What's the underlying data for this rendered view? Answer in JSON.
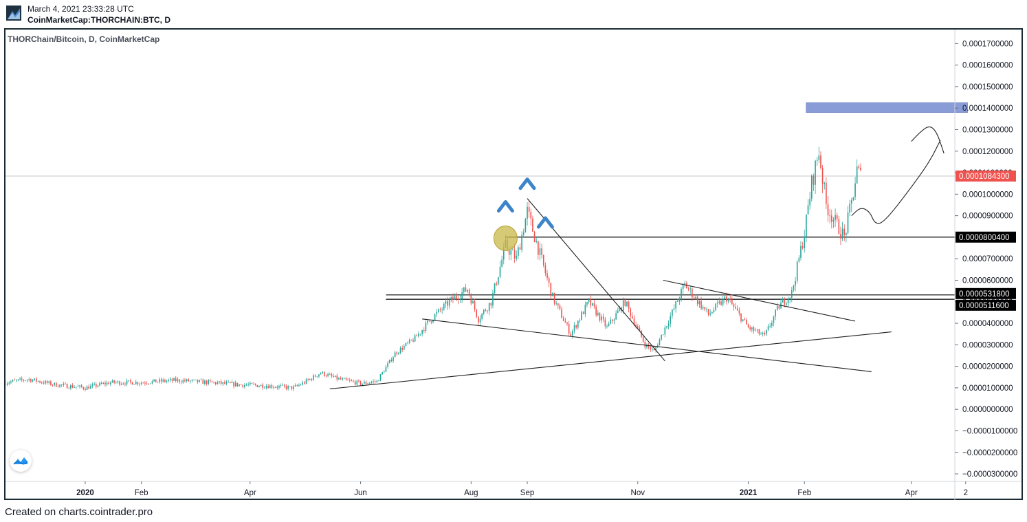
{
  "header": {
    "datetime": "March 4, 2021 23:33:28 UTC",
    "symbol": "CoinMarketCap:THORCHAIN:BTC, D"
  },
  "legend": {
    "title": "THORChain/Bitcoin, D, CoinMarketCap"
  },
  "footer": {
    "text": "Created on charts.cointrader.pro"
  },
  "colors": {
    "up": "#26a69a",
    "down": "#ef5350",
    "zone": "#8a9cd8",
    "highlight": "#c9b84a",
    "arrow": "#3d84c8",
    "frame": "#1b2a33"
  },
  "icons": [
    "cointrader-logo-icon",
    "tradingview-logo-icon"
  ],
  "chart_data": {
    "type": "candlestick",
    "title": "THORChain/Bitcoin, D, CoinMarketCap",
    "yaxis": {
      "ticks": [
        0.00017,
        0.00016,
        0.00015,
        0.00014,
        0.00013,
        0.00012,
        0.00011,
        0.0001,
        9e-05,
        8e-05,
        7e-05,
        6e-05,
        5e-05,
        4e-05,
        3e-05,
        2e-05,
        1e-05,
        0.0,
        -1e-05,
        -2e-05,
        -3e-05
      ],
      "tick_labels": [
        "0.0001700000",
        "0.0001600000",
        "0.0001500000",
        "0.0001400000",
        "0.0001300000",
        "0.0001200000",
        "0.0001100000",
        "0.0001000000",
        "0.0000900000",
        "0.0000800000",
        "0.0000700000",
        "0.0000600000",
        "0.0000500000",
        "0.0000400000",
        "0.0000300000",
        "0.0000200000",
        "0.0000100000",
        "0.0000000000",
        "−0.0000100000",
        "−0.0000200000",
        "−0.0000300000"
      ],
      "range": [
        -3.35e-05,
        0.0001765
      ]
    },
    "xaxis": {
      "range": [
        "2019-11-18",
        "2021-04-25"
      ],
      "ticks": [
        {
          "date": "2020-01-01",
          "label": "2020",
          "bold": true
        },
        {
          "date": "2020-02-01",
          "label": "Feb"
        },
        {
          "date": "2020-04-01",
          "label": "Apr"
        },
        {
          "date": "2020-06-01",
          "label": "Jun"
        },
        {
          "date": "2020-08-01",
          "label": "Aug"
        },
        {
          "date": "2020-09-01",
          "label": "Sep"
        },
        {
          "date": "2020-11-01",
          "label": "Nov"
        },
        {
          "date": "2021-01-01",
          "label": "2021",
          "bold": true
        },
        {
          "date": "2021-02-01",
          "label": "Feb"
        },
        {
          "date": "2021-04-01",
          "label": "Apr"
        },
        {
          "date": "2021-05-01",
          "label": "2"
        }
      ]
    },
    "price_path": [
      [
        "2019-11-18",
        1.25e-05
      ],
      [
        "2019-12-01",
        1.4e-05
      ],
      [
        "2019-12-15",
        1.15e-05
      ],
      [
        "2020-01-01",
        1e-05
      ],
      [
        "2020-01-15",
        1.25e-05
      ],
      [
        "2020-02-01",
        1.25e-05
      ],
      [
        "2020-02-20",
        1.35e-05
      ],
      [
        "2020-03-10",
        1.25e-05
      ],
      [
        "2020-03-25",
        1.15e-05
      ],
      [
        "2020-04-10",
        1.1e-05
      ],
      [
        "2020-04-25",
        1e-05
      ],
      [
        "2020-05-01",
        1.25e-05
      ],
      [
        "2020-05-10",
        1.7e-05
      ],
      [
        "2020-05-20",
        1.4e-05
      ],
      [
        "2020-06-01",
        1.2e-05
      ],
      [
        "2020-06-10",
        1.3e-05
      ],
      [
        "2020-06-20",
        2.6e-05
      ],
      [
        "2020-07-01",
        3.3e-05
      ],
      [
        "2020-07-10",
        4.2e-05
      ],
      [
        "2020-07-20",
        5e-05
      ],
      [
        "2020-07-30",
        5.6e-05
      ],
      [
        "2020-08-05",
        4.2e-05
      ],
      [
        "2020-08-12",
        5e-05
      ],
      [
        "2020-08-20",
        7.6e-05
      ],
      [
        "2020-08-26",
        7e-05
      ],
      [
        "2020-09-01",
        9.2e-05
      ],
      [
        "2020-09-08",
        7.2e-05
      ],
      [
        "2020-09-15",
        5.2e-05
      ],
      [
        "2020-09-25",
        3.5e-05
      ],
      [
        "2020-10-05",
        5e-05
      ],
      [
        "2020-10-15",
        3.8e-05
      ],
      [
        "2020-10-25",
        5e-05
      ],
      [
        "2020-11-05",
        3e-05
      ],
      [
        "2020-11-10",
        2.7e-05
      ],
      [
        "2020-11-20",
        4.5e-05
      ],
      [
        "2020-11-27",
        5.8e-05
      ],
      [
        "2020-12-10",
        4.4e-05
      ],
      [
        "2020-12-20",
        5.2e-05
      ],
      [
        "2021-01-01",
        3.8e-05
      ],
      [
        "2021-01-10",
        3.4e-05
      ],
      [
        "2021-01-18",
        4.8e-05
      ],
      [
        "2021-01-25",
        5.4e-05
      ],
      [
        "2021-02-01",
        8.2e-05
      ],
      [
        "2021-02-05",
        0.000105
      ],
      [
        "2021-02-09",
        0.00012
      ],
      [
        "2021-02-13",
        9.5e-05
      ],
      [
        "2021-02-18",
        8.7e-05
      ],
      [
        "2021-02-23",
        8e-05
      ],
      [
        "2021-02-27",
        9.6e-05
      ],
      [
        "2021-03-02",
        0.000111
      ],
      [
        "2021-03-04",
        0.0001084
      ]
    ],
    "horizontal_levels": [
      {
        "value": 8.004e-05,
        "label": "0.0000800400"
      },
      {
        "value": 5.318e-05,
        "label": "0.0000531800"
      },
      {
        "value": 5.116e-05,
        "label": "0.0000511600"
      }
    ],
    "last_price": {
      "value": 0.00010843,
      "label": "0.0001084300"
    },
    "target_zone": {
      "start": "2021-02-02",
      "end": "2021-05-02",
      "low": 0.000138,
      "high": 0.0001425
    },
    "trendlines": [
      {
        "from": [
          "2020-05-15",
          9.5e-06
        ],
        "to": [
          "2021-03-21",
          3.6e-05
        ]
      },
      {
        "from": [
          "2020-07-05",
          4.2e-05
        ],
        "to": [
          "2021-03-10",
          1.75e-05
        ]
      },
      {
        "from": [
          "2020-09-01",
          9.8e-05
        ],
        "to": [
          "2020-11-16",
          2.25e-05
        ]
      },
      {
        "from": [
          "2020-11-15",
          6e-05
        ],
        "to": [
          "2021-03-01",
          4.1e-05
        ]
      }
    ],
    "annotations": [
      {
        "type": "circle",
        "date": "2020-08-20",
        "value": 7.95e-05
      },
      {
        "type": "caret",
        "date": "2020-08-20",
        "value": 9.45e-05
      },
      {
        "type": "caret",
        "date": "2020-09-01",
        "value": 0.000105
      },
      {
        "type": "caret",
        "date": "2020-09-11",
        "value": 8.7e-05
      },
      {
        "type": "projection",
        "points": [
          [
            "2021-02-27",
            9e-05
          ],
          [
            "2021-03-04",
            9.4e-05
          ],
          [
            "2021-03-09",
            9.2e-05
          ],
          [
            "2021-03-12",
            8.6e-05
          ],
          [
            "2021-03-17",
            8.7e-05
          ],
          [
            "2021-03-31",
            0.000102
          ],
          [
            "2021-04-11",
            0.000115
          ],
          [
            "2021-04-17",
            0.000125
          ]
        ]
      },
      {
        "type": "projection",
        "points": [
          [
            "2021-04-01",
            0.0001245
          ],
          [
            "2021-04-06",
            0.000129
          ],
          [
            "2021-04-11",
            0.000132
          ],
          [
            "2021-04-15",
            0.000129
          ],
          [
            "2021-04-19",
            0.000119
          ]
        ]
      }
    ]
  }
}
